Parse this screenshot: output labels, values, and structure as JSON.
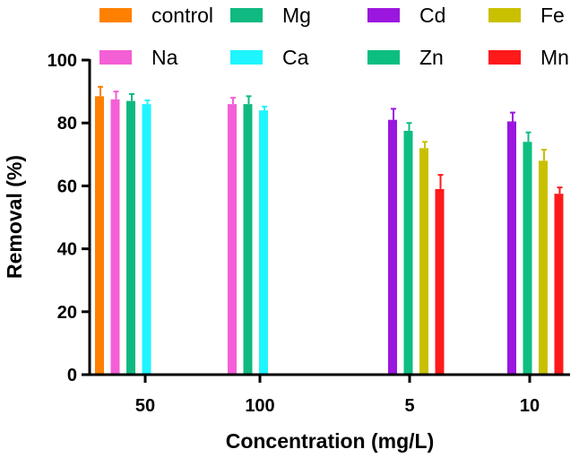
{
  "chart_data": {
    "type": "bar",
    "title": "",
    "xlabel": "Concentration (mg/L)",
    "ylabel": "Removal (%)",
    "ylim": [
      0,
      100
    ],
    "yticks": [
      0,
      20,
      40,
      60,
      80,
      100
    ],
    "categories": [
      "50",
      "100",
      "5",
      "10"
    ],
    "legend_position": "top",
    "grid": false,
    "series": [
      {
        "name": "control",
        "color": "#FF8000",
        "values": [
          88.5,
          null,
          null,
          null
        ],
        "errors": [
          3.0,
          null,
          null,
          null
        ]
      },
      {
        "name": "Na",
        "color": "#F45FD6",
        "values": [
          87.5,
          86.0,
          null,
          null
        ],
        "errors": [
          2.5,
          2.0,
          null,
          null
        ]
      },
      {
        "name": "Mg",
        "color": "#10B981",
        "values": [
          87.0,
          86.0,
          null,
          null
        ],
        "errors": [
          2.2,
          2.5,
          null,
          null
        ]
      },
      {
        "name": "Ca",
        "color": "#1FF5FF",
        "values": [
          86.0,
          84.0,
          null,
          null
        ],
        "errors": [
          1.2,
          1.2,
          null,
          null
        ]
      },
      {
        "name": "Cd",
        "color": "#9B16DE",
        "values": [
          null,
          null,
          81.0,
          80.5
        ],
        "errors": [
          null,
          null,
          3.5,
          2.8
        ]
      },
      {
        "name": "Zn",
        "color": "#0DBE81",
        "values": [
          null,
          null,
          77.5,
          74.0
        ],
        "errors": [
          null,
          null,
          2.5,
          3.0
        ]
      },
      {
        "name": "Fe",
        "color": "#C9C100",
        "values": [
          null,
          null,
          72.0,
          68.0
        ],
        "errors": [
          null,
          null,
          2.0,
          3.5
        ]
      },
      {
        "name": "Mn",
        "color": "#FF1A1A",
        "values": [
          null,
          null,
          59.0,
          57.5
        ],
        "errors": [
          null,
          null,
          4.5,
          2.0
        ]
      }
    ]
  }
}
